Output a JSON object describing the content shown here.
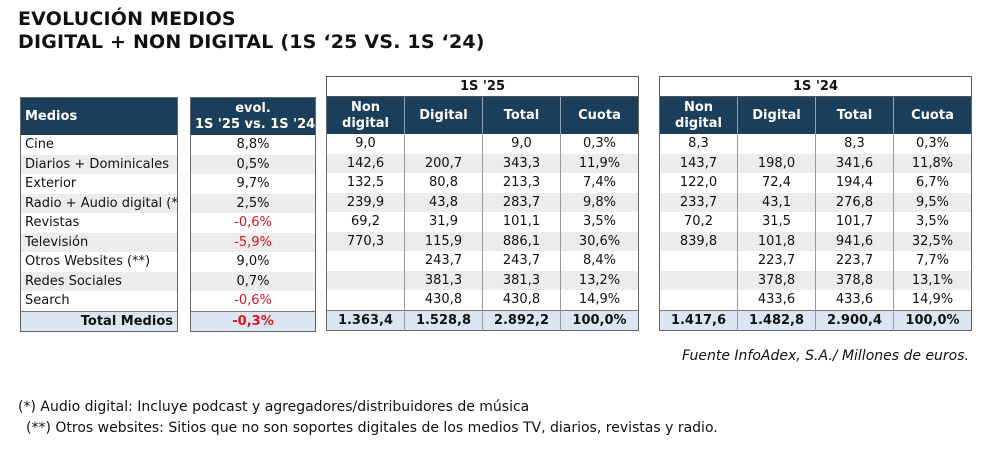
{
  "title": {
    "line1": "EVOLUCIÓN MEDIOS",
    "line2": "DIGITAL + NON DIGITAL (1S ‘25 VS. 1S ‘24)"
  },
  "colors": {
    "header_bg": "#1b3e5a",
    "total_bg": "#dce6f2",
    "negative": "#d9151b",
    "alt_row": "#ececec"
  },
  "medios": {
    "header": "Medios",
    "rows": [
      "Cine",
      "Diarios + Dominicales",
      "Exterior",
      "Radio + Audio digital (*)",
      "Revistas",
      "Televisión",
      "Otros Websites (**)",
      "Redes Sociales",
      "Search"
    ],
    "total": "Total Medios"
  },
  "evol": {
    "header_l1": "evol.",
    "header_l2": "1S '25 vs. 1S '24",
    "rows": [
      "8,8%",
      "0,5%",
      "9,7%",
      "2,5%",
      "-0,6%",
      "-5,9%",
      "9,0%",
      "0,7%",
      "-0,6%"
    ],
    "negative_rows": [
      4,
      5,
      8
    ],
    "total": "-0,3%"
  },
  "p25": {
    "label": "1S '25",
    "col_non_l1": "Non",
    "col_non_l2": "digital",
    "col_digital": "Digital",
    "col_total": "Total",
    "col_cuota": "Cuota",
    "rows": [
      [
        "9,0",
        "",
        "9,0",
        "0,3%"
      ],
      [
        "142,6",
        "200,7",
        "343,3",
        "11,9%"
      ],
      [
        "132,5",
        "80,8",
        "213,3",
        "7,4%"
      ],
      [
        "239,9",
        "43,8",
        "283,7",
        "9,8%"
      ],
      [
        "69,2",
        "31,9",
        "101,1",
        "3,5%"
      ],
      [
        "770,3",
        "115,9",
        "886,1",
        "30,6%"
      ],
      [
        "",
        "243,7",
        "243,7",
        "8,4%"
      ],
      [
        "",
        "381,3",
        "381,3",
        "13,2%"
      ],
      [
        "",
        "430,8",
        "430,8",
        "14,9%"
      ]
    ],
    "total": [
      "1.363,4",
      "1.528,8",
      "2.892,2",
      "100,0%"
    ]
  },
  "p24": {
    "label": "1S '24",
    "col_non_l1": "Non",
    "col_non_l2": "digital",
    "col_digital": "Digital",
    "col_total": "Total",
    "col_cuota": "Cuota",
    "rows": [
      [
        "8,3",
        "",
        "8,3",
        "0,3%"
      ],
      [
        "143,7",
        "198,0",
        "341,6",
        "11,8%"
      ],
      [
        "122,0",
        "72,4",
        "194,4",
        "6,7%"
      ],
      [
        "233,7",
        "43,1",
        "276,8",
        "9,5%"
      ],
      [
        "70,2",
        "31,5",
        "101,7",
        "3,5%"
      ],
      [
        "839,8",
        "101,8",
        "941,6",
        "32,5%"
      ],
      [
        "",
        "223,7",
        "223,7",
        "7,7%"
      ],
      [
        "",
        "378,8",
        "378,8",
        "13,1%"
      ],
      [
        "",
        "433,6",
        "433,6",
        "14,9%"
      ]
    ],
    "total": [
      "1.417,6",
      "1.482,8",
      "2.900,4",
      "100,0%"
    ]
  },
  "source": "Fuente InfoAdex, S.A./ Millones de euros.",
  "notes": {
    "n1": "(*) Audio digital: Incluye podcast y agregadores/distribuidores de música",
    "n2": "(**) Otros websites: Sitios que no son soportes digitales de los medios TV, diarios, revistas y radio."
  }
}
